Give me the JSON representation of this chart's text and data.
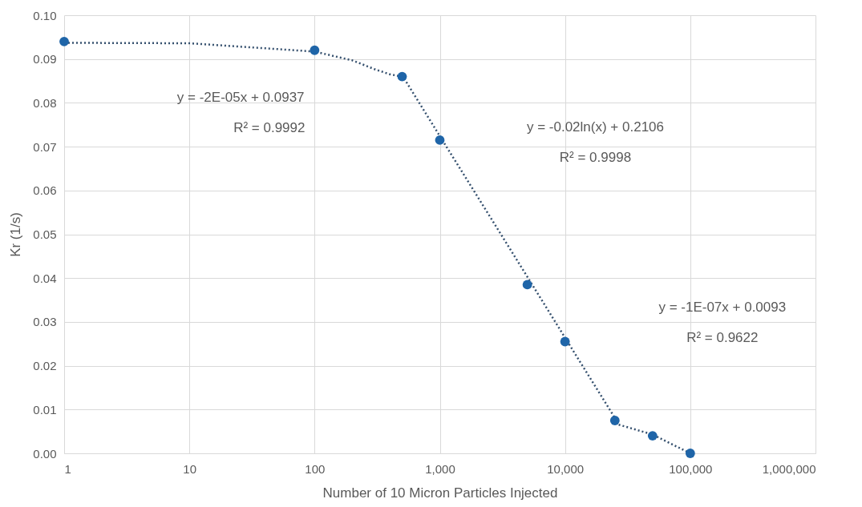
{
  "chart_data": {
    "type": "scatter",
    "xlabel": "Number of 10 Micron Particles Injected",
    "ylabel": "Kr (1/s)",
    "log": "x",
    "grid": true,
    "xlim": [
      1,
      1000000
    ],
    "xticks": [
      {
        "value": 1,
        "label": "1"
      },
      {
        "value": 10,
        "label": "10"
      },
      {
        "value": 100,
        "label": "100"
      },
      {
        "value": 1000,
        "label": "1,000"
      },
      {
        "value": 10000,
        "label": "10,000"
      },
      {
        "value": 100000,
        "label": "100,000"
      },
      {
        "value": 1000000,
        "label": "1,000,000"
      }
    ],
    "ylim": [
      0,
      0.1
    ],
    "yticks": [
      {
        "value": 0,
        "label": "0.00"
      },
      {
        "value": 0.01,
        "label": "0.01"
      },
      {
        "value": 0.02,
        "label": "0.02"
      },
      {
        "value": 0.03,
        "label": "0.03"
      },
      {
        "value": 0.04,
        "label": "0.04"
      },
      {
        "value": 0.05,
        "label": "0.05"
      },
      {
        "value": 0.06,
        "label": "0.06"
      },
      {
        "value": 0.07,
        "label": "0.07"
      },
      {
        "value": 0.08,
        "label": "0.08"
      },
      {
        "value": 0.09,
        "label": "0.09"
      },
      {
        "value": 0.1,
        "label": "0.10"
      }
    ],
    "series": [
      {
        "marker": "circle",
        "color": "#1f65a8",
        "x": [
          1,
          100,
          500,
          1000,
          5000,
          10000,
          25000,
          50000,
          100000
        ],
        "values": [
          0.094,
          0.092,
          0.086,
          0.0715,
          0.0385,
          0.0255,
          0.0075,
          0.004,
          0.0
        ]
      },
      {
        "type": "line",
        "line_style": "dotted",
        "color": "#35506e",
        "x": [
          1,
          10,
          100,
          200,
          300,
          400,
          500
        ],
        "values": [
          0.0937,
          0.0936,
          0.0917,
          0.0897,
          0.0877,
          0.0865,
          0.086
        ]
      },
      {
        "type": "line",
        "line_style": "dotted",
        "color": "#35506e",
        "x": [
          500,
          1000,
          2000,
          5000,
          10000,
          25000
        ],
        "values": [
          0.0863,
          0.0724,
          0.0586,
          0.0403,
          0.0264,
          0.0081
        ]
      },
      {
        "type": "line",
        "line_style": "dotted",
        "color": "#35506e",
        "x": [
          25000,
          50000,
          100000
        ],
        "values": [
          0.0068,
          0.0043,
          0.0
        ]
      }
    ],
    "annotations": [
      "y = -2E-05x + 0.0937",
      "R² = 0.9992",
      "y = -0.02ln(x) + 0.2106",
      "R² = 0.9998",
      "y = -1E-07x + 0.0093",
      "R² = 0.9622"
    ]
  }
}
